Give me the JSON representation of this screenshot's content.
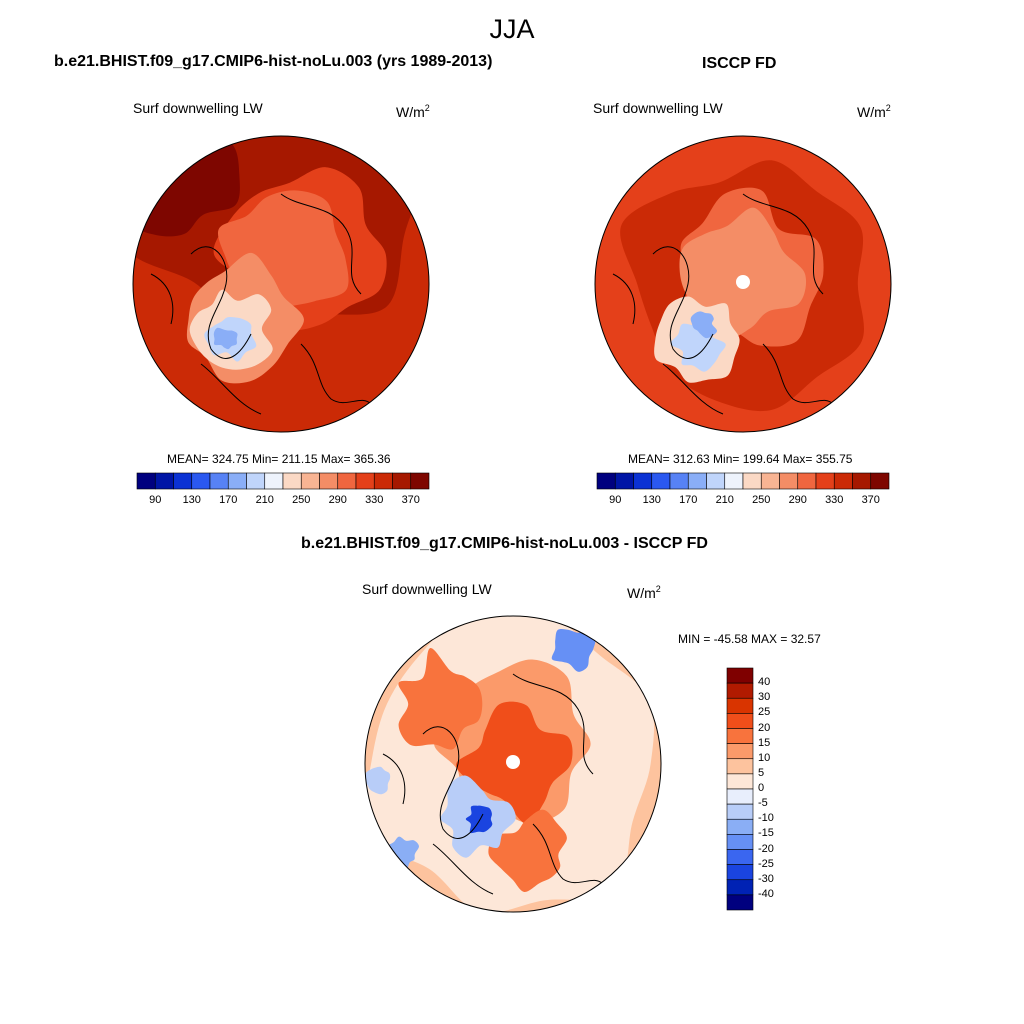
{
  "title": "JJA",
  "panels": [
    {
      "title": "b.e21.BHIST.f09_g17.CMIP6-hist-noLu.003 (yrs 1989-2013)",
      "variable": "Surf downwelling LW",
      "units_base": "W/m",
      "units_exp": "2",
      "stats": "MEAN= 324.75  Min= 211.15  Max= 365.36",
      "mean": 324.75,
      "min": 211.15,
      "max": 365.36,
      "pole_missing": false
    },
    {
      "title": "ISCCP FD",
      "variable": "Surf downwelling LW",
      "units_base": "W/m",
      "units_exp": "2",
      "stats": "MEAN= 312.63  Min= 199.64  Max= 355.75",
      "mean": 312.63,
      "min": 199.64,
      "max": 355.75,
      "pole_missing": true
    }
  ],
  "diff_panel": {
    "title": "b.e21.BHIST.f09_g17.CMIP6-hist-noLu.003 - ISCCP FD",
    "variable": "Surf downwelling LW",
    "units_base": "W/m",
    "units_exp": "2",
    "stats": "MIN = -45.58 MAX =  32.57",
    "min": -45.58,
    "max": 32.57,
    "pole_missing": true
  },
  "colorbar_abs": {
    "colors": [
      "#00007f",
      "#0015a6",
      "#0b32d4",
      "#2a58f0",
      "#5782f5",
      "#8aaef7",
      "#c0d5fb",
      "#eef3fc",
      "#fbd9c5",
      "#f8b493",
      "#f48d66",
      "#f0663f",
      "#e4401a",
      "#cb2a06",
      "#a61800",
      "#7e0600"
    ],
    "tick_labels": [
      "90",
      "130",
      "170",
      "210",
      "250",
      "290",
      "330",
      "370"
    ]
  },
  "colorbar_diff": {
    "colors": [
      "#7f0000",
      "#b11a00",
      "#d93400",
      "#f04e1a",
      "#f8733d",
      "#fb9a6a",
      "#fdc39e",
      "#fde7d8",
      "#e8eefc",
      "#b8cdf8",
      "#8aaef5",
      "#6690f5",
      "#3a66f0",
      "#1a44e0",
      "#0022b4",
      "#00007f"
    ],
    "tick_labels": [
      "40",
      "30",
      "25",
      "20",
      "15",
      "10",
      "5",
      "0",
      "-5",
      "-10",
      "-15",
      "-20",
      "-25",
      "-30",
      "-40"
    ]
  }
}
